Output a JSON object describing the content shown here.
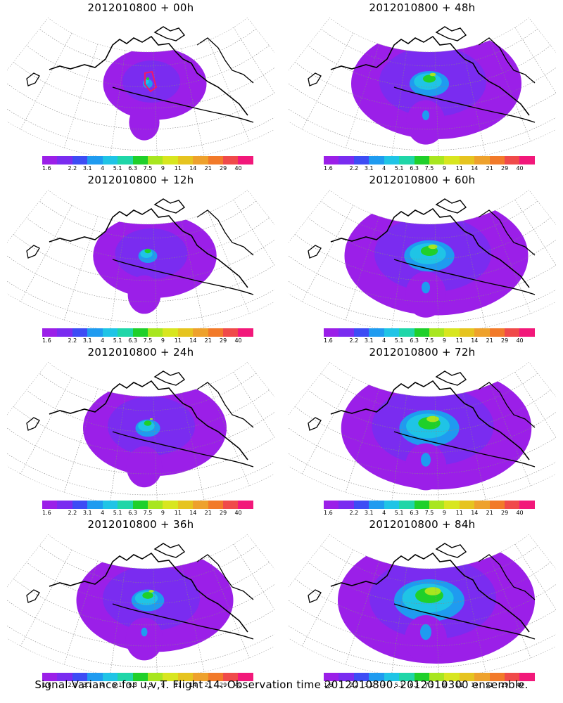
{
  "panels": [
    {
      "title": "2012010800 + 00h",
      "intensity": 0.05,
      "extent": 0.3
    },
    {
      "title": "2012010800 + 12h",
      "intensity": 0.3,
      "extent": 0.45
    },
    {
      "title": "2012010800 + 24h",
      "intensity": 0.35,
      "extent": 0.6
    },
    {
      "title": "2012010800 + 36h",
      "intensity": 0.45,
      "extent": 0.7
    },
    {
      "title": "2012010800 + 48h",
      "intensity": 0.5,
      "extent": 0.8
    },
    {
      "title": "2012010800 + 60h",
      "intensity": 0.6,
      "extent": 0.9
    },
    {
      "title": "2012010800 + 72h",
      "intensity": 0.7,
      "extent": 0.95
    },
    {
      "title": "2012010800 + 84h",
      "intensity": 0.8,
      "extent": 1.0
    }
  ],
  "colorbar": {
    "colors": [
      "#9b1fe8",
      "#7a2cf0",
      "#3d4cf5",
      "#1f9bf0",
      "#1fc4e6",
      "#1fd6a8",
      "#1fd02a",
      "#a8e61f",
      "#d8e61f",
      "#e6c41f",
      "#eea12c",
      "#f27a2a",
      "#f04a4a",
      "#f2187a"
    ],
    "labels": [
      "1.6",
      "2.2",
      "3.1",
      "4",
      "5.1",
      "6.3",
      "7.5",
      "9",
      "11",
      "14",
      "21",
      "29",
      "40"
    ]
  },
  "caption": "Signal Variance for u,v,T. Flight 14. Observation time 2012010800. 2012010300 ensemble."
}
